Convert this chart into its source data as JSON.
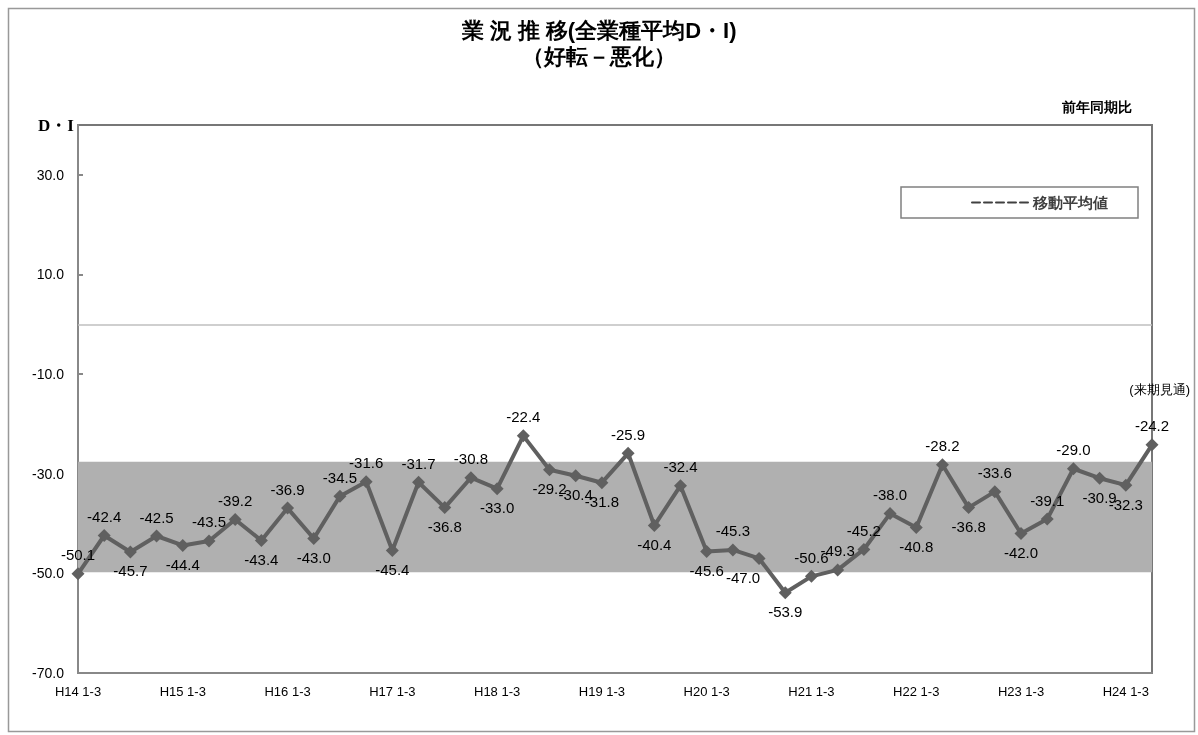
{
  "chart_data": {
    "type": "line",
    "title": "業 況 推 移(全業種平均D・I)",
    "subtitle": "（好転－悪化）",
    "ylabel": "D・I",
    "annotations": [
      "前年同期比",
      "(来期見通)"
    ],
    "categories": [
      "H14 1-3",
      null,
      null,
      null,
      "H15 1-3",
      null,
      null,
      null,
      "H16 1-3",
      null,
      null,
      null,
      "H17 1-3",
      null,
      null,
      null,
      "H18 1-3",
      null,
      null,
      null,
      "H19 1-3",
      null,
      null,
      null,
      "H20 1-3",
      null,
      null,
      null,
      "H21 1-3",
      null,
      null,
      null,
      "H22 1-3",
      null,
      null,
      null,
      "H23 1-3",
      null,
      null,
      null,
      "H24 1-3",
      null
    ],
    "series": [
      {
        "color": "#606060",
        "values": [
          -50.1,
          -42.4,
          -45.7,
          -42.5,
          -44.4,
          -43.5,
          -39.2,
          -43.4,
          -36.9,
          -43.0,
          -34.5,
          -31.6,
          -45.4,
          -31.7,
          -36.8,
          -30.8,
          -33.0,
          -22.4,
          -29.2,
          -30.4,
          -31.8,
          -25.9,
          -40.4,
          -32.4,
          -45.6,
          -45.3,
          -47.0,
          -53.9,
          -50.6,
          -49.3,
          -45.2,
          -38.0,
          -40.8,
          -28.2,
          -36.8,
          -33.6,
          -42.0,
          -39.1,
          -29.0,
          -30.9,
          -32.3,
          -24.2
        ],
        "value_labels": [
          "-50.1",
          "-42.4",
          "-45.7",
          "-42.5",
          "-44.4",
          "-43.5",
          "-39.2",
          "-43.4",
          "-36.9",
          "-43.0",
          "-34.5",
          "-31.6",
          "-45.4",
          "-31.7",
          "-36.8",
          "-30.8",
          "-33.0",
          "-22.4",
          "-29.2",
          "-30.4",
          "-31.8",
          "-25.9",
          "-40.4",
          "-32.4",
          "-45.6",
          "-45.3",
          "-47.0",
          "-53.9",
          "-50.6",
          "-49.3",
          "-45.2",
          "-38.0",
          "-40.8",
          "-28.2",
          "-36.8",
          "-33.6",
          "-42.0",
          "-39.1",
          "-29.0",
          "-30.9",
          "-32.3",
          "-24.2"
        ],
        "marker": "diamond",
        "line_style": "solid"
      },
      {
        "name": "移動平均値",
        "color": "#404040",
        "line_style": "dashed",
        "marker": "none",
        "values": [
          null,
          null,
          null,
          null,
          null,
          null,
          null,
          null,
          null,
          null,
          null,
          null,
          null,
          null,
          null,
          null,
          null,
          null,
          null,
          null,
          null,
          null,
          null,
          null,
          null,
          null,
          null,
          null,
          null,
          null,
          null,
          null,
          null,
          null,
          null,
          null,
          null,
          null,
          null,
          null,
          null,
          null
        ]
      }
    ],
    "ylim": [
      -70,
      40
    ],
    "yticks": [
      {
        "value": 30,
        "label": "30.0"
      },
      {
        "value": 10,
        "label": "10.0"
      },
      {
        "value": -10,
        "label": "-10.0"
      },
      {
        "value": -30,
        "label": "-30.0"
      },
      {
        "value": -50,
        "label": "-50.0"
      },
      {
        "value": -70,
        "label": "-70.0"
      }
    ],
    "ref_lines": [
      {
        "axis": "y",
        "value": 0,
        "color": "#bfbfbf"
      }
    ],
    "bands": [
      {
        "axis": "y",
        "from": -49.8,
        "to": -27.6,
        "color": "#b0b0b0"
      }
    ],
    "grid": false,
    "legend": "top right"
  }
}
